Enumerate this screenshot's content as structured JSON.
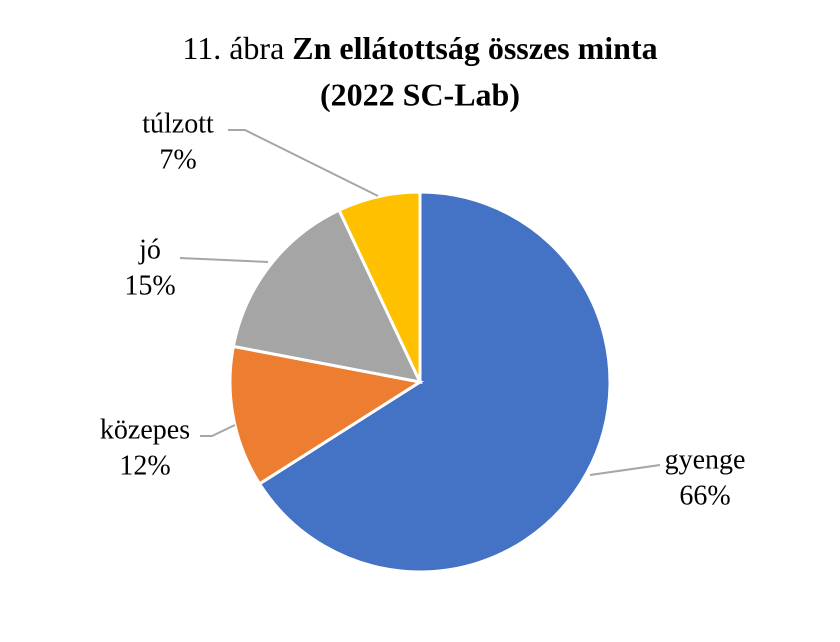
{
  "chart_data": {
    "type": "pie",
    "title": [
      "11. ábra",
      "Zn ellátottság összes minta",
      "(2022 SC-Lab)"
    ],
    "categories": [
      "gyenge",
      "közepes",
      "jó",
      "túlzott"
    ],
    "values": [
      66,
      12,
      15,
      7
    ],
    "value_labels": [
      "66%",
      "12%",
      "15%",
      "7%"
    ],
    "colors": [
      "#4472c4",
      "#ed7d31",
      "#a5a5a5",
      "#ffc000"
    ]
  }
}
